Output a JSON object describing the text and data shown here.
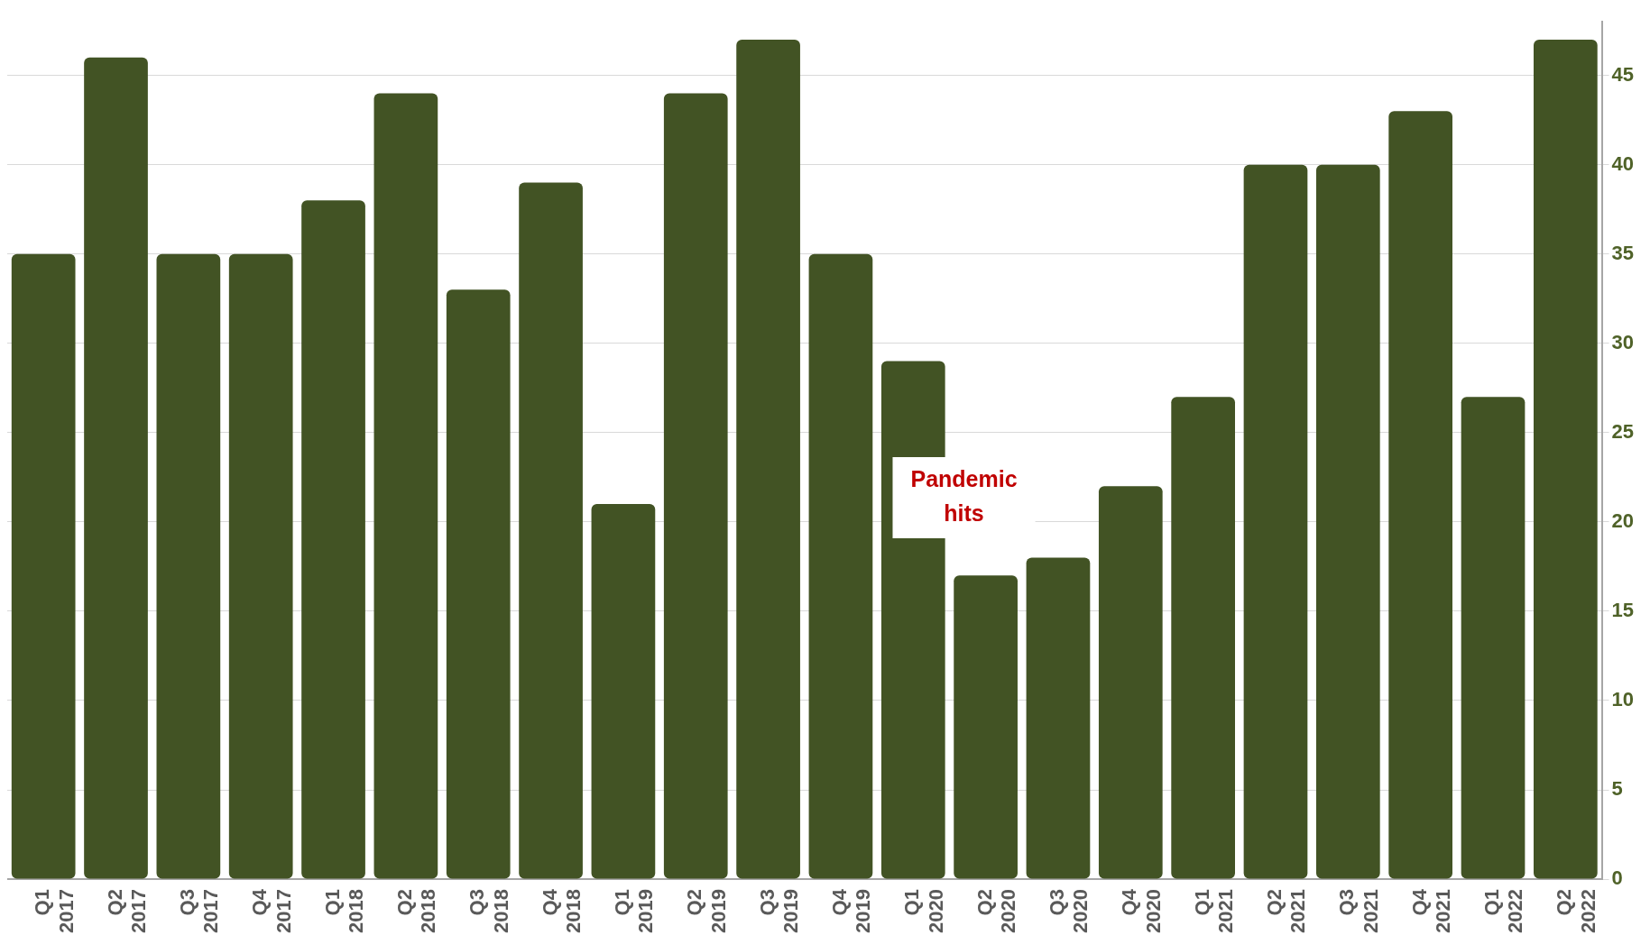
{
  "chart_data": {
    "type": "bar",
    "categories": [
      "Q1 2017",
      "Q2 2017",
      "Q3 2017",
      "Q4 2017",
      "Q1 2018",
      "Q2 2018",
      "Q3 2018",
      "Q4 2018",
      "Q1 2019",
      "Q2 2019",
      "Q3 2019",
      "Q4 2019",
      "Q1 2020",
      "Q2 2020",
      "Q3 2020",
      "Q4 2020",
      "Q1 2021",
      "Q2 2021",
      "Q3 2021",
      "Q4 2021",
      "Q1 2022",
      "Q2 2022"
    ],
    "values": [
      35,
      46,
      35,
      35,
      38,
      44,
      33,
      39,
      21,
      44,
      47,
      35,
      29,
      17,
      18,
      22,
      27,
      40,
      40,
      43,
      27,
      47
    ],
    "color": "#425324",
    "ylim": [
      0,
      48
    ],
    "yticks": [
      0,
      5,
      10,
      15,
      20,
      25,
      30,
      35,
      40,
      45
    ],
    "grid": "y",
    "legend": false,
    "annotations": [
      "Pandemic hits"
    ]
  }
}
